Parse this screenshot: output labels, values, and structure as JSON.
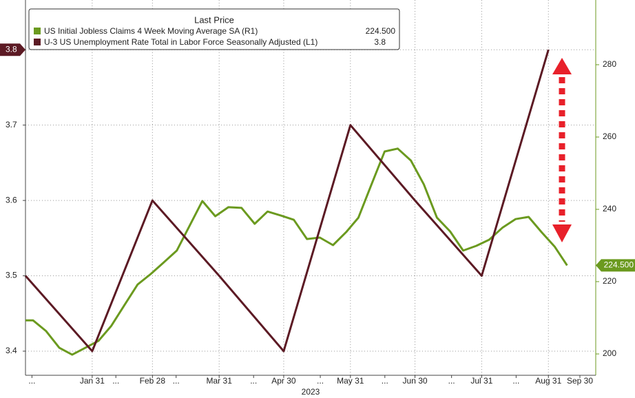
{
  "chart_data": {
    "type": "line",
    "legend_title": "Last Price",
    "xlabel": "2023",
    "xlim": [
      0,
      265
    ],
    "xticks": [
      {
        "value": 3,
        "label": "..."
      },
      {
        "value": 31,
        "label": "Jan 31"
      },
      {
        "value": 42,
        "label": "..."
      },
      {
        "value": 59,
        "label": "Feb 28"
      },
      {
        "value": 70,
        "label": "..."
      },
      {
        "value": 90,
        "label": "Mar 31"
      },
      {
        "value": 106,
        "label": "..."
      },
      {
        "value": 120,
        "label": "Apr 30"
      },
      {
        "value": 137,
        "label": "..."
      },
      {
        "value": 151,
        "label": "May 31"
      },
      {
        "value": 167,
        "label": "..."
      },
      {
        "value": 181,
        "label": "Jun 30"
      },
      {
        "value": 198,
        "label": "..."
      },
      {
        "value": 212,
        "label": "Jul 31"
      },
      {
        "value": 228,
        "label": "..."
      },
      {
        "value": 243,
        "label": "Aug 31"
      },
      {
        "value": 273,
        "label": "Sep 30"
      }
    ],
    "ylim": [
      3.368,
      3.866
    ],
    "yticks": [
      3.4,
      3.5,
      3.6,
      3.7,
      3.8
    ],
    "y2lim": [
      194.1,
      297.9
    ],
    "y2ticks": [
      200,
      220,
      240,
      260,
      280
    ],
    "grid": true,
    "series": [
      {
        "name": "US Initial Jobless Claims 4 Week Moving Average SA  (R1)",
        "color": "#6b9a1f",
        "axis": "y2",
        "last_label": "224.500",
        "x": [
          0,
          3.5,
          9.6,
          15.7,
          21.7,
          27.8,
          33.9,
          39.9,
          46,
          52.1,
          58.2,
          64.2,
          70.3,
          76.4,
          82.2,
          88.2,
          94.3,
          100.4,
          106.5,
          112.5,
          118.6,
          124.7,
          130.8,
          136.8,
          142.9,
          149,
          154.7,
          160.8,
          166.9,
          173,
          179.1,
          185.1,
          191.2,
          197.3,
          203.4,
          209.5,
          215.5,
          221.6,
          227.7,
          233.8,
          239.8,
          245.9,
          251.7
        ],
        "values": [
          209.3,
          209.3,
          206.3,
          201.7,
          199.8,
          201.7,
          203.6,
          207.8,
          213.5,
          219.2,
          222.1,
          225.3,
          228.6,
          235.6,
          242.3,
          238.1,
          240.6,
          240.4,
          236.0,
          239.4,
          238.3,
          237.1,
          231.8,
          232.2,
          230.1,
          233.7,
          237.7,
          246.9,
          256.0,
          256.8,
          253.5,
          246.9,
          237.7,
          233.9,
          228.6,
          229.9,
          231.6,
          234.9,
          237.3,
          237.9,
          233.7,
          229.7,
          224.5
        ]
      },
      {
        "name": "U-3 US Unemployment Rate Total in Labor Force Seasonally Adjusted  (L1)",
        "color": "#5c1a24",
        "axis": "y",
        "last_label": "3.8",
        "x": [
          0,
          31,
          59,
          90,
          120,
          151,
          181,
          212,
          243
        ],
        "values": [
          3.5,
          3.4,
          3.6,
          3.5,
          3.4,
          3.7,
          3.6,
          3.5,
          3.8
        ]
      }
    ]
  }
}
